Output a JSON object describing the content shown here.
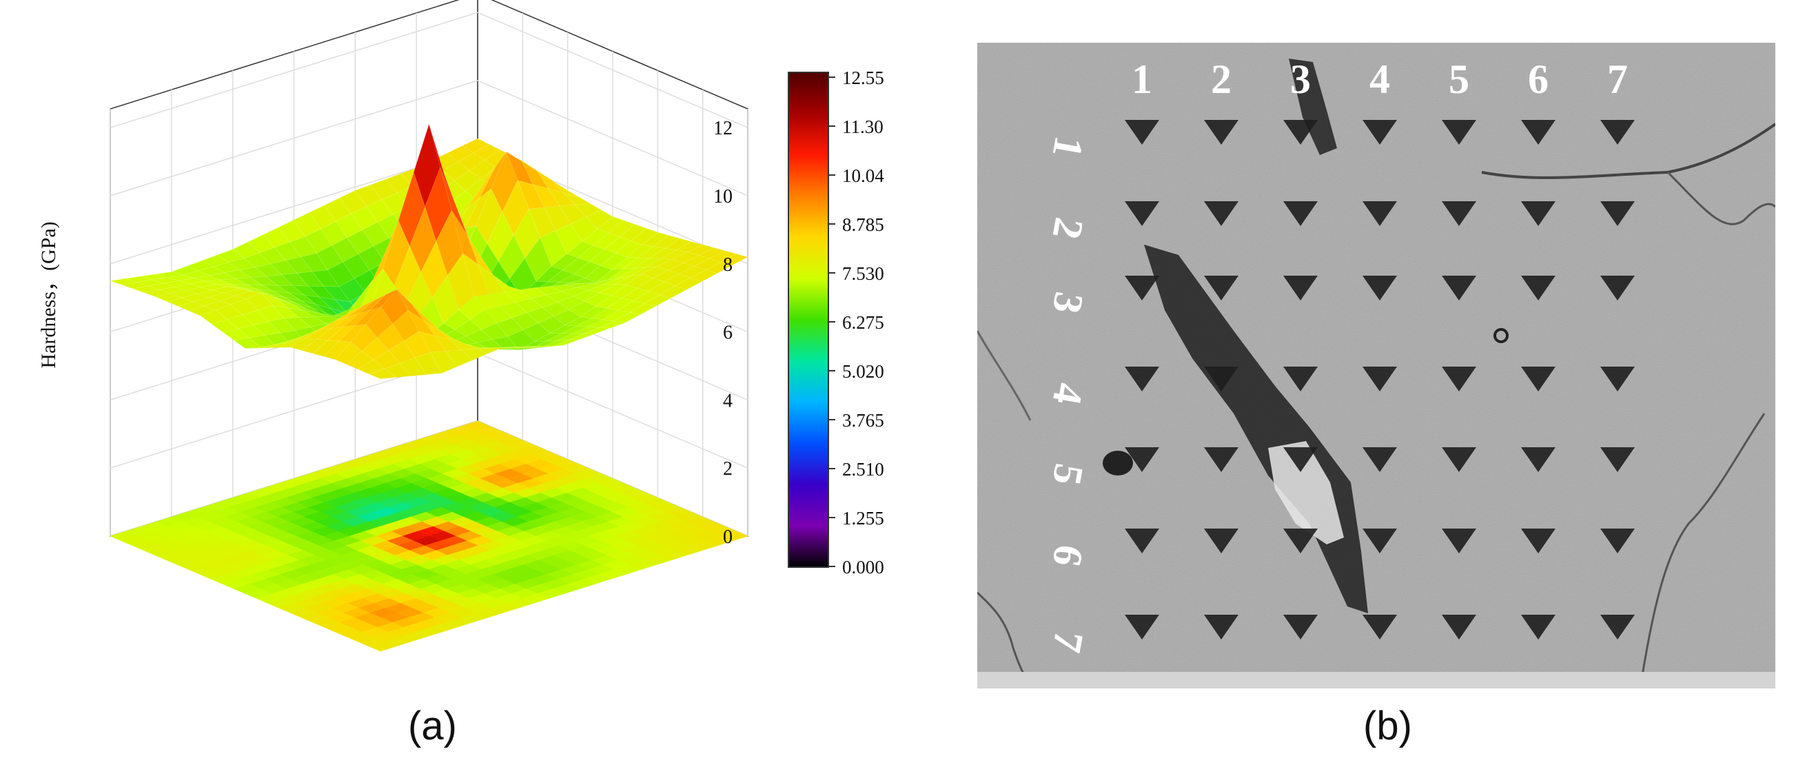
{
  "captions": {
    "a": "(a)",
    "b": "(b)"
  },
  "chart_data": [
    {
      "type": "surface3d",
      "panel": "(a)",
      "zlabel": "Hardness，(GPa)",
      "z_ticks": [
        "0",
        "2",
        "4",
        "6",
        "8",
        "10",
        "12"
      ],
      "zlim": [
        0,
        12.55
      ],
      "grid": true,
      "x": [
        1,
        2,
        3,
        4,
        5,
        6,
        7
      ],
      "y": [
        1,
        2,
        3,
        4,
        5,
        6,
        7
      ],
      "z": [
        [
          8.3,
          8.0,
          7.9,
          7.6,
          7.3,
          7.2,
          7.5
        ],
        [
          8.2,
          7.2,
          6.6,
          6.2,
          6.8,
          7.4,
          7.6
        ],
        [
          7.9,
          9.6,
          5.8,
          5.0,
          6.5,
          7.7,
          7.6
        ],
        [
          7.7,
          6.8,
          5.6,
          12.1,
          7.0,
          6.8,
          7.2
        ],
        [
          7.8,
          6.9,
          7.3,
          7.6,
          6.6,
          8.3,
          7.8
        ],
        [
          8.0,
          7.7,
          7.0,
          6.6,
          7.2,
          9.5,
          8.0
        ],
        [
          8.2,
          7.8,
          7.4,
          7.3,
          7.8,
          7.6,
          8.0
        ]
      ],
      "colorbar": {
        "ticks": [
          "12.55",
          "11.30",
          "10.04",
          "8.785",
          "7.530",
          "6.275",
          "5.020",
          "3.765",
          "2.510",
          "1.255",
          "0.000"
        ],
        "colormap": [
          "#500000",
          "#a60000",
          "#ff1a00",
          "#ff8000",
          "#ffd800",
          "#d0ff00",
          "#40e000",
          "#00e6a0",
          "#00b4ff",
          "#0050ff",
          "#3800c8",
          "#7a00b0",
          "#000000"
        ]
      }
    }
  ],
  "micrograph": {
    "panel": "(b)",
    "column_labels": [
      "1",
      "2",
      "3",
      "4",
      "5",
      "6",
      "7"
    ],
    "row_labels": [
      "1",
      "2",
      "3",
      "4",
      "5",
      "6",
      "7"
    ]
  }
}
